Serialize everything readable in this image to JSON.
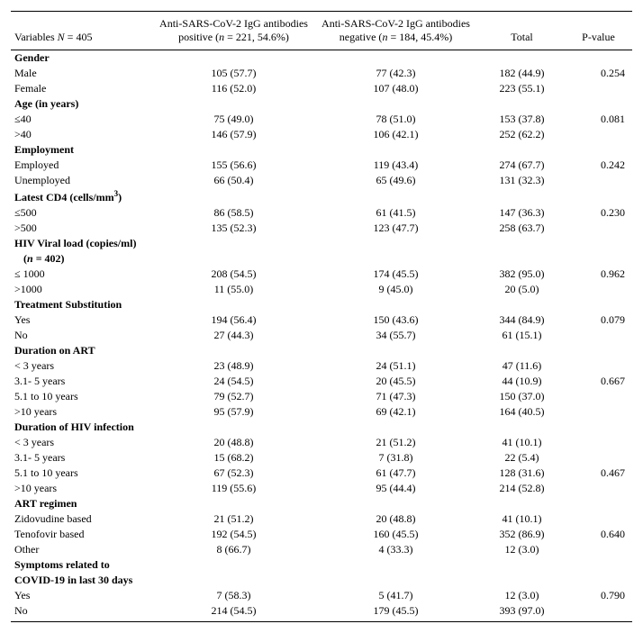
{
  "header": {
    "col1_a": "Variables ",
    "col1_b": "N",
    "col1_c": " = 405",
    "col2_a": "Anti-SARS-CoV-2 IgG antibodies",
    "col2_b": "positive (",
    "col2_c": "n",
    "col2_d": " = 221, 54.6%)",
    "col3_a": "Anti-SARS-CoV-2 IgG antibodies",
    "col3_b": "negative (",
    "col3_c": "n",
    "col3_d": " = 184, 45.4%)",
    "col4": "Total",
    "col5": "P-value"
  },
  "groups": [
    {
      "title": "Gender",
      "rows": [
        {
          "label": "Male",
          "pos": "105 (57.7)",
          "neg": "77 (42.3)",
          "tot": "182 (44.9)",
          "p": "0.254"
        },
        {
          "label": "Female",
          "pos": "116 (52.0)",
          "neg": "107 (48.0)",
          "tot": "223 (55.1)",
          "p": ""
        }
      ]
    },
    {
      "title": "Age (in years)",
      "rows": [
        {
          "label": "≤40",
          "pos": "75 (49.0)",
          "neg": "78 (51.0)",
          "tot": "153 (37.8)",
          "p": "0.081"
        },
        {
          "label": ">40",
          "pos": "146 (57.9)",
          "neg": "106 (42.1)",
          "tot": "252 (62.2)",
          "p": ""
        }
      ]
    },
    {
      "title": "Employment",
      "rows": [
        {
          "label": "Employed",
          "pos": "155 (56.6)",
          "neg": "119 (43.4)",
          "tot": "274 (67.7)",
          "p": "0.242"
        },
        {
          "label": "Unemployed",
          "pos": "66 (50.4)",
          "neg": "65 (49.6)",
          "tot": "131 (32.3)",
          "p": ""
        }
      ]
    },
    {
      "title_html": "Latest CD4 (cells/mm<span class=\"sup\">3</span>)",
      "rows": [
        {
          "label": "≤500",
          "pos": "86 (58.5)",
          "neg": "61 (41.5)",
          "tot": "147 (36.3)",
          "p": "0.230"
        },
        {
          "label": ">500",
          "pos": "135 (52.3)",
          "neg": "123 (47.7)",
          "tot": "258 (63.7)",
          "p": ""
        }
      ]
    },
    {
      "title": "HIV Viral load (copies/ml)",
      "subtitle_html": "(<i>n</i> = 402)",
      "rows": [
        {
          "label": "≤ 1000",
          "pos": "208 (54.5)",
          "neg": "174 (45.5)",
          "tot": "382 (95.0)",
          "p": "0.962"
        },
        {
          "label": ">1000",
          "pos": "11 (55.0)",
          "neg": "9 (45.0)",
          "tot": "20 (5.0)",
          "p": ""
        }
      ]
    },
    {
      "title": "Treatment Substitution",
      "rows": [
        {
          "label": "Yes",
          "pos": "194 (56.4)",
          "neg": "150 (43.6)",
          "tot": "344 (84.9)",
          "p": "0.079"
        },
        {
          "label": "No",
          "pos": "27 (44.3)",
          "neg": "34 (55.7)",
          "tot": "61 (15.1)",
          "p": ""
        }
      ]
    },
    {
      "title": "Duration on ART",
      "rows": [
        {
          "label": "< 3 years",
          "pos": "23 (48.9)",
          "neg": "24 (51.1)",
          "tot": "47 (11.6)",
          "p": ""
        },
        {
          "label": "3.1- 5 years",
          "pos": "24 (54.5)",
          "neg": "20 (45.5)",
          "tot": "44 (10.9)",
          "p": "0.667"
        },
        {
          "label": "5.1 to 10 years",
          "pos": "79 (52.7)",
          "neg": "71 (47.3)",
          "tot": "150 (37.0)",
          "p": ""
        },
        {
          "label": ">10 years",
          "pos": "95 (57.9)",
          "neg": "69 (42.1)",
          "tot": "164 (40.5)",
          "p": ""
        }
      ]
    },
    {
      "title": "Duration of HIV infection",
      "rows": [
        {
          "label": "< 3 years",
          "pos": "20 (48.8)",
          "neg": "21 (51.2)",
          "tot": "41 (10.1)",
          "p": ""
        },
        {
          "label": "3.1- 5 years",
          "pos": "15 (68.2)",
          "neg": "7 (31.8)",
          "tot": "22 (5.4)",
          "p": ""
        },
        {
          "label": "5.1 to 10 years",
          "pos": "67 (52.3)",
          "neg": "61 (47.7)",
          "tot": "128 (31.6)",
          "p": "0.467"
        },
        {
          "label": ">10 years",
          "pos": "119 (55.6)",
          "neg": "95 (44.4)",
          "tot": "214 (52.8)",
          "p": ""
        }
      ]
    },
    {
      "title": "ART regimen",
      "rows": [
        {
          "label": "Zidovudine based",
          "pos": "21 (51.2)",
          "neg": "20 (48.8)",
          "tot": "41 (10.1)",
          "p": ""
        },
        {
          "label": "Tenofovir based",
          "pos": "192 (54.5)",
          "neg": "160 (45.5)",
          "tot": "352 (86.9)",
          "p": "0.640"
        },
        {
          "label": "Other",
          "pos": "8 (66.7)",
          "neg": "4 (33.3)",
          "tot": "12 (3.0)",
          "p": ""
        }
      ]
    },
    {
      "title": "Symptoms related to",
      "title2": "COVID-19 in last 30 days",
      "rows": [
        {
          "label": "Yes",
          "pos": "7 (58.3)",
          "neg": "5 (41.7)",
          "tot": "12 (3.0)",
          "p": "0.790"
        },
        {
          "label": "No",
          "pos": "214 (54.5)",
          "neg": "179 (45.5)",
          "tot": "393 (97.0)",
          "p": ""
        }
      ]
    }
  ]
}
